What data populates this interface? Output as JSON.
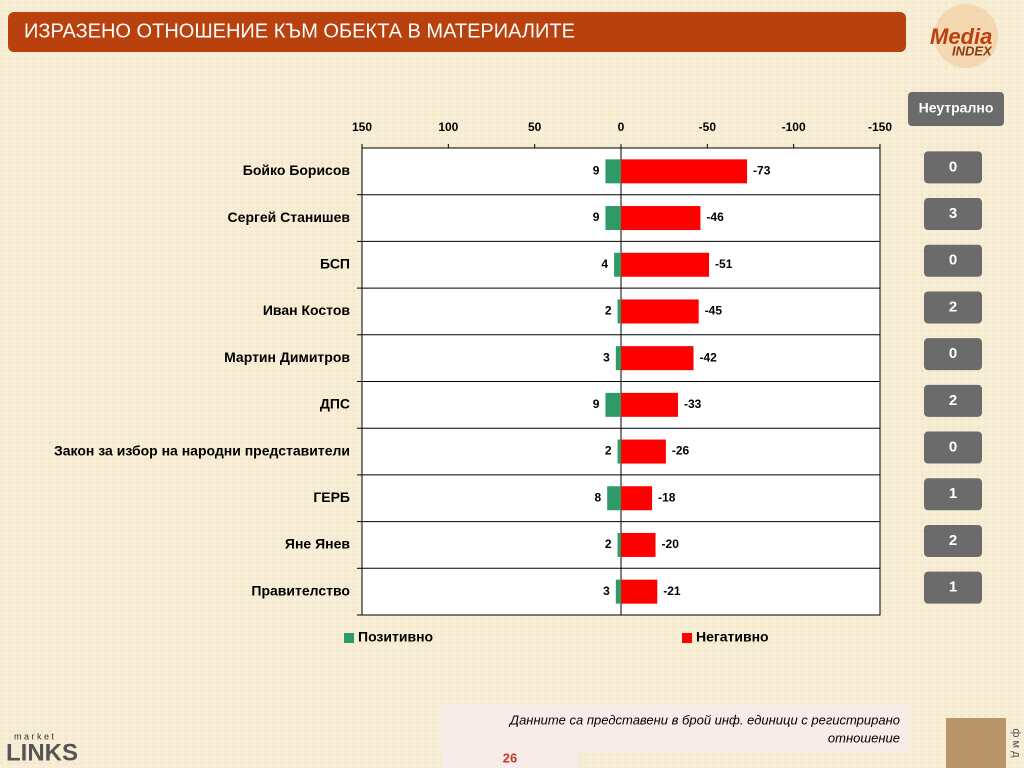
{
  "header": {
    "title": "ИЗРАЗЕНО ОТНОШЕНИЕ КЪМ ОБЕКТА В МАТЕРИАЛИТЕ"
  },
  "chart_data": {
    "type": "diverging_bar",
    "categories": [
      "Бойко Борисов",
      "Сергей Станишев",
      "БСП",
      "Иван Костов",
      "Мартин Димитров",
      "ДПС",
      "Закон за избор на народни представители",
      "ГЕРБ",
      "Яне Янев",
      "Правителство"
    ],
    "series": [
      {
        "name": "Позитивно",
        "color": "#2e9a68",
        "values": [
          9,
          9,
          4,
          2,
          3,
          9,
          2,
          8,
          2,
          3
        ]
      },
      {
        "name": "Негативно",
        "color": "#ff0000",
        "values": [
          -73,
          -46,
          -51,
          -45,
          -42,
          -33,
          -26,
          -18,
          -20,
          -21
        ]
      }
    ],
    "xlim": [
      150,
      -150
    ],
    "xticks": [
      150,
      100,
      50,
      0,
      -50,
      -100,
      -150
    ]
  },
  "neutral": {
    "title": "Неутрално",
    "values": [
      0,
      3,
      0,
      2,
      0,
      2,
      0,
      1,
      2,
      1
    ]
  },
  "footer": {
    "note_line1": "Данните са представени в брой инф. единици с регистрирано",
    "note_line2": "отношение",
    "page": "26"
  },
  "logos": {
    "media": "Media",
    "index": "INDEX",
    "market": "m a r k e t",
    "links": "LINKS",
    "fmd": "ф м д"
  }
}
